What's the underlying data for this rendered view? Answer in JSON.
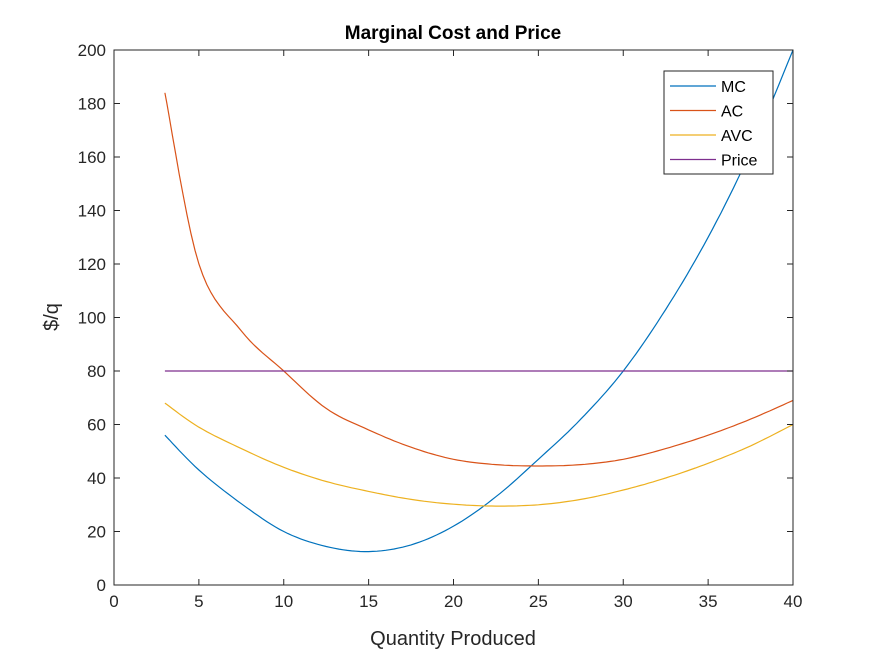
{
  "chart_data": {
    "type": "line",
    "title": "Marginal Cost and Price",
    "xlabel": "Quantity Produced",
    "ylabel": "$/q",
    "xlim": [
      0,
      40
    ],
    "ylim": [
      0,
      200
    ],
    "xticks": [
      0,
      5,
      10,
      15,
      20,
      25,
      30,
      35,
      40
    ],
    "yticks": [
      0,
      20,
      40,
      60,
      80,
      100,
      120,
      140,
      160,
      180,
      200
    ],
    "grid": false,
    "legend": "top-right",
    "series": [
      {
        "name": "MC",
        "color": "#0072BD",
        "x": [
          3,
          5,
          7.5,
          10,
          12.5,
          15,
          17.5,
          20,
          22.5,
          25,
          27.5,
          30,
          32.5,
          35,
          37.5,
          40
        ],
        "y": [
          56,
          43,
          30.4,
          20,
          14.4,
          12.5,
          15,
          22,
          33,
          47,
          62,
          80,
          103,
          130,
          162,
          200
        ]
      },
      {
        "name": "AC",
        "color": "#D95319",
        "x": [
          3,
          5,
          7.5,
          10,
          12.5,
          15,
          17.5,
          20,
          22.5,
          25,
          27.5,
          30,
          32.5,
          35,
          37.5,
          40
        ],
        "y": [
          184,
          120,
          95,
          80,
          66,
          58,
          51.5,
          47,
          45,
          44.5,
          45,
          47,
          51,
          56,
          62,
          69
        ]
      },
      {
        "name": "AVC",
        "color": "#EDB120",
        "x": [
          3,
          5,
          7.5,
          10,
          12.5,
          15,
          17.5,
          20,
          22.5,
          25,
          27.5,
          30,
          32.5,
          35,
          37.5,
          40
        ],
        "y": [
          68,
          59,
          51,
          44,
          38.7,
          35,
          32,
          30.2,
          29.5,
          30,
          32,
          35.5,
          40,
          45.5,
          52,
          60
        ]
      },
      {
        "name": "Price",
        "color": "#7E2F8E",
        "x": [
          3,
          40
        ],
        "y": [
          80,
          80
        ]
      }
    ]
  }
}
